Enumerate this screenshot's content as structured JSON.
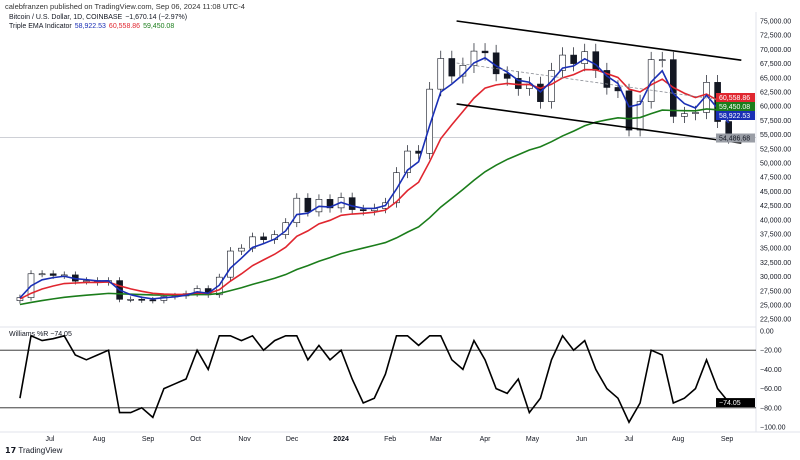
{
  "header": {
    "published": "calebfranzen published on TradingView.com, Sep 06, 2024 11:08 UTC-4"
  },
  "legend": {
    "symbol": "Bitcoin / U.S. Dollar, 1D, COINBASE",
    "change": "−1,670.14 (−2.97%)",
    "indicator": "Triple EMA Indicator",
    "ema_fast": "58,922.53",
    "ema_mid": "60,558.86",
    "ema_slow": "59,450.08"
  },
  "williams": {
    "label": "Williams %R",
    "value": "−74.05"
  },
  "footer": {
    "brand": "TradingView"
  },
  "colors": {
    "ema_fast": "#1a2fb5",
    "ema_mid": "#e0262f",
    "ema_slow": "#1b7d1b",
    "candle": "#131722",
    "last_price": "#9a9ea6"
  },
  "chart_data": [
    {
      "type": "candlestick",
      "title": "Bitcoin / U.S. Dollar, 1D, COINBASE",
      "ylim": [
        22500,
        75000
      ],
      "y_ticks": [
        "75,000.00",
        "72,500.00",
        "70,000.00",
        "67,500.00",
        "65,000.00",
        "62,500.00",
        "60,000.00",
        "57,500.00",
        "55,000.00",
        "52,500.00",
        "50,000.00",
        "47,500.00",
        "45,000.00",
        "42,500.00",
        "40,000.00",
        "37,500.00",
        "35,000.00",
        "32,500.00",
        "30,000.00",
        "27,500.00",
        "25,000.00",
        "22,500.00"
      ],
      "x_ticks": [
        {
          "label": "Jul",
          "date": "2023-07-01"
        },
        {
          "label": "Aug",
          "date": "2023-08-01"
        },
        {
          "label": "Sep",
          "date": "2023-09-01"
        },
        {
          "label": "Oct",
          "date": "2023-10-01"
        },
        {
          "label": "Nov",
          "date": "2023-11-01"
        },
        {
          "label": "Dec",
          "date": "2023-12-01"
        },
        {
          "label": "2024",
          "date": "2024-01-01"
        },
        {
          "label": "Feb",
          "date": "2024-02-01"
        },
        {
          "label": "Mar",
          "date": "2024-03-01"
        },
        {
          "label": "Apr",
          "date": "2024-04-01"
        },
        {
          "label": "May",
          "date": "2024-05-01"
        },
        {
          "label": "Jun",
          "date": "2024-06-01"
        },
        {
          "label": "Jul",
          "date": "2024-07-01"
        },
        {
          "label": "Aug",
          "date": "2024-08-01"
        },
        {
          "label": "Sep",
          "date": "2024-09-01"
        }
      ],
      "start_date": "2023-06-12",
      "step_days": 7,
      "close": [
        26300,
        30500,
        30500,
        30200,
        30300,
        29200,
        29300,
        29000,
        29300,
        26000,
        26000,
        25900,
        25800,
        26500,
        26600,
        27000,
        27900,
        26800,
        29900,
        34500,
        35000,
        37000,
        36500,
        37400,
        39500,
        43800,
        41400,
        43600,
        42100,
        43900,
        41800,
        41600,
        42000,
        43000,
        48300,
        52100,
        51700,
        63000,
        68400,
        65300,
        67200,
        69700,
        69400,
        65700,
        64900,
        63100,
        63900,
        60800,
        66300,
        69000,
        67500,
        69600,
        66300,
        63300,
        62700,
        55800,
        60800,
        68200,
        68200,
        58200,
        58700,
        58900,
        64200,
        57300,
        54486.68
      ],
      "ema_badges": [
        {
          "series": "ema_mid",
          "value": "60,558.86"
        },
        {
          "series": "ema_slow",
          "value": "59,450.08"
        },
        {
          "series": "ema_fast",
          "value": "58,922.53"
        }
      ],
      "last_price": "54,486.68",
      "trendlines": [
        {
          "name": "channel-upper",
          "from": [
            "2024-03-14",
            75000
          ],
          "to": [
            "2024-09-10",
            68100
          ],
          "style": "solid"
        },
        {
          "name": "channel-lower",
          "from": [
            "2024-03-14",
            60400
          ],
          "to": [
            "2024-09-10",
            53500
          ],
          "style": "solid"
        },
        {
          "name": "channel-mid",
          "from": [
            "2024-03-14",
            67600
          ],
          "to": [
            "2024-09-10",
            60600
          ],
          "style": "dashed"
        }
      ]
    },
    {
      "type": "line",
      "title": "Williams %R",
      "ylim": [
        -100,
        0
      ],
      "y_ticks": [
        "0.00",
        "−20.00",
        "−40.00",
        "−60.00",
        "−80.00",
        "−100.00"
      ],
      "levels": [
        -20,
        -80
      ],
      "start_date": "2023-06-12",
      "step_days": 7,
      "values": [
        -70,
        -5,
        -10,
        -8,
        -5,
        -25,
        -30,
        -25,
        -20,
        -85,
        -85,
        -80,
        -90,
        -60,
        -55,
        -50,
        -20,
        -40,
        -5,
        -5,
        -10,
        -5,
        -20,
        -10,
        -5,
        -5,
        -30,
        -15,
        -30,
        -20,
        -50,
        -75,
        -70,
        -45,
        -5,
        -5,
        -15,
        -5,
        -5,
        -30,
        -40,
        -10,
        -30,
        -60,
        -65,
        -50,
        -85,
        -70,
        -30,
        -5,
        -20,
        -10,
        -40,
        -60,
        -70,
        -95,
        -75,
        -20,
        -25,
        -75,
        -70,
        -60,
        -30,
        -60,
        -74.05
      ],
      "last_value": "−74.05"
    }
  ]
}
